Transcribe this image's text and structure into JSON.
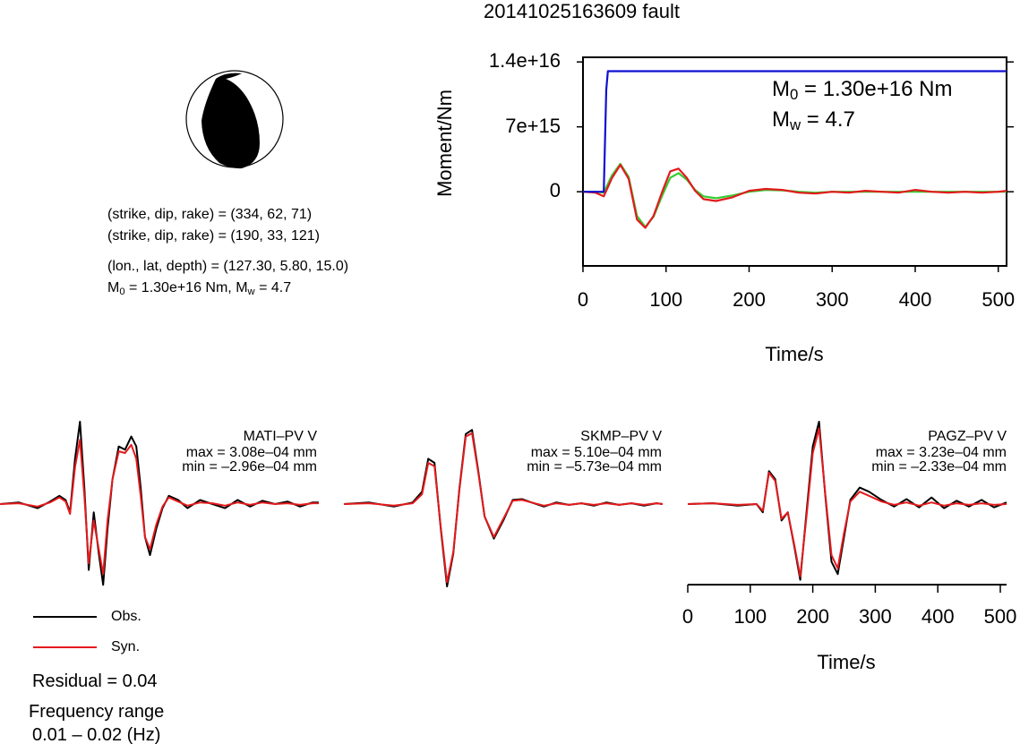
{
  "title": "20141025163609 fault",
  "focal_mechanism": {
    "line1_prefix": "(strike, dip, rake) = ",
    "line1_values": "(334, 62, 71)",
    "line2_prefix": "(strike, dip, rake) = ",
    "line2_values": "(190, 33, 121)",
    "location_prefix": "(lon., lat, depth) = ",
    "location_values": "(127.30, 5.80, 15.0)",
    "m0_text": " = 1.30e+16 Nm, ",
    "mw_text": " = 4.7",
    "m_symbol": "M",
    "sub_0": "0",
    "sub_w": "w"
  },
  "moment_panel": {
    "m0_label": " = 1.30e+16 Nm",
    "mw_label": " = 4.7",
    "m_symbol": "M",
    "sub_0": "0",
    "sub_w": "w"
  },
  "stations": [
    {
      "name": "MATI–PV V",
      "max": "max = 3.08e–04 mm",
      "min": "min = –2.96e–04 mm"
    },
    {
      "name": "SKMP–PV V",
      "max": "max = 5.10e–04 mm",
      "min": "min = –5.73e–04 mm"
    },
    {
      "name": "PAGZ–PV V",
      "max": "max = 3.23e–04 mm",
      "min": "min = –2.33e–04 mm"
    }
  ],
  "legend": {
    "obs": "Obs.",
    "syn": "Syn.",
    "residual": "Residual = 0.04",
    "freq_label": "Frequency range",
    "freq_value": "0.01 – 0.02 (Hz)"
  },
  "colors": {
    "obs": "#000000",
    "syn": "#e41a1c",
    "moment": "#1010d0",
    "stf_green": "#33cc33",
    "stf_red": "#e41a1c"
  },
  "chart_data": [
    {
      "type": "line",
      "xlabel": "Time/s",
      "ylabel": "Moment/Nm",
      "xlim": [
        0,
        510
      ],
      "ylim": [
        -8000000000000000.0,
        1.45e+16
      ],
      "x_ticks": [
        0,
        100,
        200,
        300,
        400,
        500
      ],
      "y_ticks": [
        {
          "value": 0,
          "label": "0"
        },
        {
          "value": 7000000000000000.0,
          "label": "7e+15"
        },
        {
          "value": 1.4e+16,
          "label": "1.4e+16"
        }
      ],
      "series": [
        {
          "color": "blue",
          "x": [
            0,
            25,
            28,
            30,
            510
          ],
          "y": [
            0,
            0,
            1.1e+16,
            1.3e+16,
            1.3e+16
          ]
        },
        {
          "color": "red",
          "x": [
            0,
            15,
            25,
            35,
            45,
            55,
            65,
            75,
            85,
            95,
            105,
            115,
            125,
            135,
            145,
            160,
            180,
            200,
            220,
            240,
            260,
            280,
            300,
            320,
            340,
            360,
            380,
            400,
            420,
            440,
            460,
            480,
            500,
            510
          ],
          "y": [
            0,
            -100000000000000.0,
            -500000000000000.0,
            1500000000000000.0,
            2900000000000000.0,
            1400000000000000.0,
            -3000000000000000.0,
            -3900000000000000.0,
            -2600000000000000.0,
            -100000000000000.0,
            2200000000000000.0,
            2500000000000000.0,
            1500000000000000.0,
            100000000000000.0,
            -800000000000000.0,
            -1000000000000000.0,
            -600000000000000.0,
            100000000000000.0,
            300000000000000.0,
            200000000000000.0,
            -100000000000000.0,
            -200000000000000.0,
            0,
            -100000000000000.0,
            100000000000000.0,
            0,
            -100000000000000.0,
            200000000000000.0,
            0,
            -100000000000000.0,
            0,
            -100000000000000.0,
            0,
            100000000000000.0
          ]
        },
        {
          "color": "green",
          "x": [
            0,
            15,
            25,
            35,
            45,
            55,
            65,
            75,
            85,
            95,
            105,
            115,
            125,
            135,
            145,
            160,
            180,
            200,
            220,
            240,
            260,
            280,
            300,
            320,
            340,
            360,
            380,
            400,
            420,
            440,
            460,
            480,
            500,
            510
          ],
          "y": [
            0,
            0,
            -100000000000000.0,
            1800000000000000.0,
            3000000000000000.0,
            1600000000000000.0,
            -2600000000000000.0,
            -3800000000000000.0,
            -2700000000000000.0,
            -500000000000000.0,
            1500000000000000.0,
            2000000000000000.0,
            1300000000000000.0,
            200000000000000.0,
            -500000000000000.0,
            -700000000000000.0,
            -400000000000000.0,
            0,
            200000000000000.0,
            150000000000000.0,
            0,
            -100000000000000.0,
            0,
            0,
            0,
            0,
            0,
            0,
            0,
            0,
            0,
            0,
            0,
            0
          ]
        }
      ]
    },
    {
      "type": "line",
      "xlabel": "Time/s",
      "xlim": [
        0,
        510
      ],
      "x_ticks": [
        0,
        100,
        200,
        300,
        400,
        500
      ],
      "waveforms": [
        {
          "station": "MATI–PV V",
          "t": [
            0,
            30,
            60,
            80,
            95,
            105,
            112,
            120,
            128,
            135,
            142,
            150,
            158,
            165,
            172,
            180,
            190,
            200,
            210,
            218,
            225,
            232,
            240,
            250,
            260,
            270,
            285,
            300,
            320,
            340,
            360,
            380,
            400,
            420,
            440,
            460,
            480,
            500,
            510
          ],
          "obs": [
            0.0,
            0.02,
            -0.05,
            0.03,
            0.1,
            0.05,
            -0.1,
            0.55,
            1.0,
            0.2,
            -0.8,
            -0.1,
            -0.6,
            -0.98,
            -0.3,
            0.3,
            0.7,
            0.66,
            0.82,
            0.7,
            0.2,
            -0.4,
            -0.62,
            -0.3,
            -0.05,
            0.1,
            0.05,
            -0.05,
            0.05,
            0.0,
            -0.05,
            0.05,
            -0.03,
            0.04,
            0.0,
            0.03,
            -0.03,
            0.02,
            0.02
          ],
          "syn": [
            0.0,
            0.01,
            -0.03,
            0.02,
            0.08,
            0.03,
            -0.12,
            0.45,
            0.78,
            0.1,
            -0.72,
            -0.2,
            -0.55,
            -0.85,
            -0.2,
            0.3,
            0.64,
            0.62,
            0.72,
            0.55,
            0.1,
            -0.4,
            -0.55,
            -0.25,
            -0.03,
            0.08,
            0.03,
            -0.02,
            0.02,
            0.01,
            -0.02,
            0.02,
            -0.01,
            0.02,
            0.0,
            0.01,
            -0.01,
            0.01,
            0.01
          ]
        },
        {
          "station": "SKMP–PV V",
          "t": [
            0,
            40,
            80,
            110,
            125,
            135,
            145,
            155,
            165,
            175,
            185,
            195,
            205,
            215,
            225,
            240,
            255,
            270,
            285,
            300,
            320,
            340,
            360,
            380,
            400,
            420,
            440,
            460,
            480,
            500,
            510
          ],
          "obs": [
            0.0,
            0.02,
            -0.03,
            0.02,
            0.15,
            0.55,
            0.5,
            -0.3,
            -1.0,
            -0.6,
            0.2,
            0.85,
            0.9,
            0.4,
            -0.15,
            -0.42,
            -0.2,
            0.05,
            0.06,
            0.02,
            -0.03,
            0.02,
            -0.01,
            0.01,
            -0.02,
            0.02,
            -0.01,
            0.01,
            -0.02,
            0.01,
            0.0
          ],
          "syn": [
            0.0,
            0.01,
            -0.02,
            0.01,
            0.12,
            0.5,
            0.46,
            -0.28,
            -0.95,
            -0.58,
            0.18,
            0.82,
            0.86,
            0.38,
            -0.15,
            -0.4,
            -0.18,
            0.04,
            0.05,
            0.02,
            -0.02,
            0.01,
            -0.01,
            0.01,
            -0.01,
            0.01,
            -0.01,
            0.01,
            -0.01,
            0.01,
            0.0
          ]
        },
        {
          "station": "PAGZ–PV V",
          "t": [
            0,
            40,
            80,
            110,
            120,
            130,
            140,
            150,
            160,
            170,
            180,
            190,
            200,
            210,
            220,
            230,
            240,
            250,
            260,
            275,
            290,
            310,
            330,
            350,
            370,
            390,
            410,
            430,
            450,
            470,
            490,
            510
          ],
          "obs": [
            0.0,
            0.01,
            -0.02,
            0.0,
            -0.1,
            0.4,
            0.3,
            -0.2,
            -0.1,
            -0.5,
            -0.92,
            -0.1,
            0.7,
            1.0,
            0.1,
            -0.7,
            -0.85,
            -0.4,
            0.05,
            0.2,
            0.15,
            0.05,
            -0.03,
            0.06,
            -0.04,
            0.08,
            -0.05,
            0.04,
            -0.03,
            0.05,
            -0.04,
            0.02
          ],
          "syn": [
            0.0,
            0.01,
            -0.01,
            0.0,
            -0.08,
            0.38,
            0.28,
            -0.18,
            -0.1,
            -0.48,
            -0.88,
            -0.15,
            0.62,
            0.92,
            0.12,
            -0.62,
            -0.78,
            -0.35,
            0.03,
            0.15,
            0.1,
            0.03,
            -0.01,
            0.02,
            -0.02,
            0.02,
            -0.02,
            0.01,
            -0.01,
            0.01,
            -0.01,
            0.0
          ]
        }
      ]
    }
  ]
}
